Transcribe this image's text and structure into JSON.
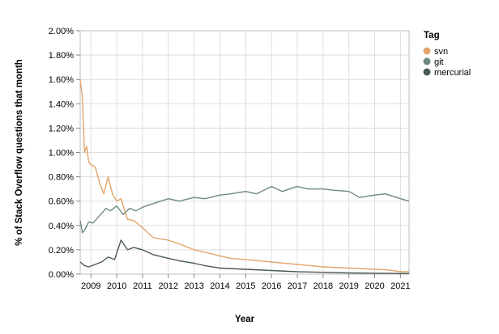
{
  "chart_data": {
    "type": "line",
    "xlabel": "Year",
    "ylabel": "% of Stack Overflow questions that month",
    "xlim": [
      "2008-08",
      "2021-05"
    ],
    "ylim": [
      0,
      2
    ],
    "y_ticks": [
      0,
      0.2,
      0.4,
      0.6,
      0.8,
      1.0,
      1.2,
      1.4,
      1.6,
      1.8,
      2.0
    ],
    "y_tick_labels": [
      "0.00%",
      "0.20%",
      "0.40%",
      "0.60%",
      "0.80%",
      "1.00%",
      "1.20%",
      "1.40%",
      "1.60%",
      "1.80%",
      "2.00%"
    ],
    "x_ticks": [
      "2009-01",
      "2010-01",
      "2011-01",
      "2012-01",
      "2013-01",
      "2014-01",
      "2015-01",
      "2016-01",
      "2017-01",
      "2018-01",
      "2019-01",
      "2020-01",
      "2021-01"
    ],
    "x_tick_labels": [
      "2009",
      "2010",
      "2011",
      "2012",
      "2013",
      "2014",
      "2015",
      "2016",
      "2017",
      "2018",
      "2019",
      "2020",
      "2021"
    ],
    "grid": true,
    "legend": {
      "title": "Tag",
      "position": "top-right"
    },
    "series": [
      {
        "name": "svn",
        "color": "#e2a56b",
        "x": [
          "2008-08",
          "2008-09",
          "2008-10",
          "2008-11",
          "2008-12",
          "2009-01",
          "2009-03",
          "2009-05",
          "2009-07",
          "2009-09",
          "2009-11",
          "2010-01",
          "2010-03",
          "2010-06",
          "2010-09",
          "2011-01",
          "2011-06",
          "2012-01",
          "2012-06",
          "2013-01",
          "2013-06",
          "2014-01",
          "2014-06",
          "2015-01",
          "2016-01",
          "2017-01",
          "2018-01",
          "2019-01",
          "2020-01",
          "2020-07",
          "2021-01",
          "2021-05"
        ],
        "values": [
          1.6,
          1.45,
          1.0,
          1.05,
          0.92,
          0.9,
          0.88,
          0.75,
          0.66,
          0.8,
          0.66,
          0.6,
          0.62,
          0.45,
          0.44,
          0.38,
          0.3,
          0.28,
          0.25,
          0.2,
          0.18,
          0.15,
          0.13,
          0.12,
          0.1,
          0.08,
          0.06,
          0.05,
          0.04,
          0.035,
          0.02,
          0.02
        ]
      },
      {
        "name": "git",
        "color": "#6e8a80",
        "x": [
          "2008-08",
          "2008-09",
          "2008-10",
          "2008-12",
          "2009-02",
          "2009-04",
          "2009-06",
          "2009-08",
          "2009-10",
          "2010-01",
          "2010-04",
          "2010-07",
          "2010-10",
          "2011-01",
          "2011-06",
          "2012-01",
          "2012-06",
          "2013-01",
          "2013-06",
          "2014-01",
          "2014-06",
          "2015-01",
          "2015-06",
          "2016-01",
          "2016-06",
          "2017-01",
          "2017-06",
          "2018-01",
          "2018-06",
          "2019-01",
          "2019-06",
          "2020-01",
          "2020-06",
          "2021-01",
          "2021-05"
        ],
        "values": [
          0.44,
          0.34,
          0.36,
          0.43,
          0.42,
          0.46,
          0.5,
          0.54,
          0.52,
          0.56,
          0.49,
          0.54,
          0.52,
          0.55,
          0.58,
          0.62,
          0.6,
          0.63,
          0.62,
          0.65,
          0.66,
          0.68,
          0.66,
          0.72,
          0.68,
          0.72,
          0.7,
          0.7,
          0.69,
          0.68,
          0.63,
          0.65,
          0.66,
          0.62,
          0.6
        ]
      },
      {
        "name": "mercurial",
        "color": "#4a5a55",
        "x": [
          "2008-08",
          "2008-10",
          "2008-12",
          "2009-03",
          "2009-06",
          "2009-09",
          "2009-12",
          "2010-03",
          "2010-06",
          "2010-09",
          "2011-01",
          "2011-06",
          "2012-01",
          "2012-06",
          "2013-01",
          "2013-06",
          "2014-01",
          "2015-01",
          "2016-01",
          "2017-01",
          "2018-01",
          "2019-01",
          "2020-01",
          "2021-01",
          "2021-05"
        ],
        "values": [
          0.1,
          0.07,
          0.06,
          0.08,
          0.1,
          0.14,
          0.12,
          0.28,
          0.2,
          0.22,
          0.2,
          0.16,
          0.13,
          0.11,
          0.09,
          0.07,
          0.05,
          0.04,
          0.03,
          0.02,
          0.015,
          0.01,
          0.008,
          0.005,
          0.005
        ]
      }
    ]
  }
}
